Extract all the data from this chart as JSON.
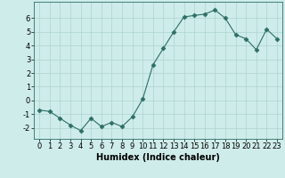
{
  "x": [
    0,
    1,
    2,
    3,
    4,
    5,
    6,
    7,
    8,
    9,
    10,
    11,
    12,
    13,
    14,
    15,
    16,
    17,
    18,
    19,
    20,
    21,
    22,
    23
  ],
  "y": [
    -0.7,
    -0.8,
    -1.3,
    -1.8,
    -2.2,
    -1.3,
    -1.9,
    -1.6,
    -1.9,
    -1.2,
    0.1,
    2.6,
    3.8,
    5.0,
    6.1,
    6.2,
    6.3,
    6.6,
    6.0,
    4.8,
    4.5,
    3.7,
    5.2,
    4.5
  ],
  "xlabel": "Humidex (Indice chaleur)",
  "xlim": [
    -0.5,
    23.5
  ],
  "ylim": [
    -2.8,
    7.2
  ],
  "yticks": [
    -2,
    -1,
    0,
    1,
    2,
    3,
    4,
    5,
    6
  ],
  "xticks": [
    0,
    1,
    2,
    3,
    4,
    5,
    6,
    7,
    8,
    9,
    10,
    11,
    12,
    13,
    14,
    15,
    16,
    17,
    18,
    19,
    20,
    21,
    22,
    23
  ],
  "line_color": "#2d6e65",
  "marker": "D",
  "marker_size": 2.5,
  "bg_color": "#ceecea",
  "grid_color": "#aed4d0",
  "fig_bg": "#ceecea",
  "xlabel_fontsize": 7,
  "tick_fontsize": 6
}
